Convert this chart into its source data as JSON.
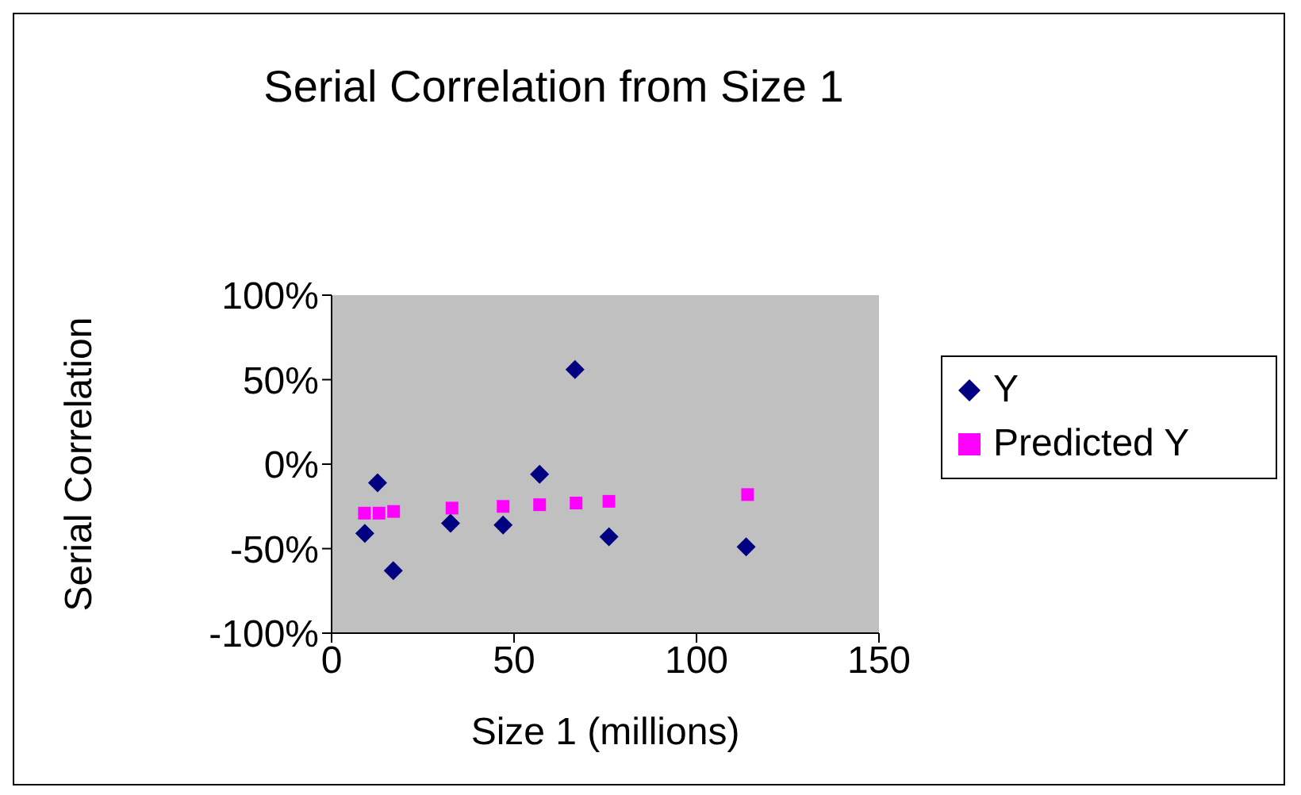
{
  "chart_data": {
    "type": "scatter",
    "title": "Serial Correlation from Size 1",
    "xlabel": "Size 1 (millions)",
    "ylabel": "Serial Correlation",
    "xlim": [
      0,
      150
    ],
    "xticks": [
      0,
      50,
      100,
      150
    ],
    "ylim": [
      -100,
      100
    ],
    "yticks": [
      {
        "value": -100,
        "label": "-100%"
      },
      {
        "value": -50,
        "label": "-50%"
      },
      {
        "value": 0,
        "label": "0%"
      },
      {
        "value": 50,
        "label": "50%"
      },
      {
        "value": 100,
        "label": "100%"
      }
    ],
    "grid": false,
    "legend": "right",
    "series": [
      {
        "name": "Y",
        "color": "#000080",
        "marker": "diamond",
        "x": [
          9.1,
          12.6,
          16.9,
          32.6,
          47,
          57,
          66.7,
          76,
          113.6
        ],
        "values": [
          -41,
          -11,
          -63,
          -35,
          -36,
          -6,
          56,
          -43,
          -49
        ]
      },
      {
        "name": "Predicted Y",
        "color": "#ff00ff",
        "marker": "square",
        "x": [
          9,
          13,
          17,
          33,
          47,
          57,
          67,
          76,
          114
        ],
        "values": [
          -29,
          -29,
          -28,
          -26,
          -25,
          -24,
          -23,
          -22,
          -18
        ]
      }
    ]
  }
}
